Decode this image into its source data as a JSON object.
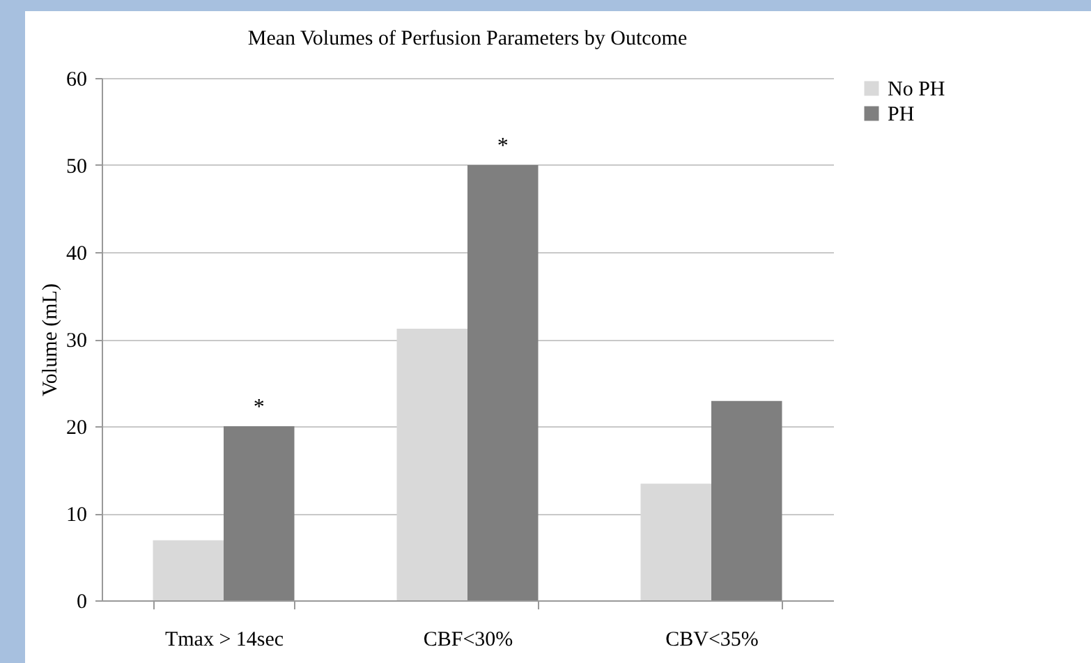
{
  "chart_data": {
    "type": "bar",
    "title": "Mean Volumes of Perfusion Parameters by Outcome",
    "ylabel": "Volume (mL)",
    "categories": [
      "Tmax > 14sec",
      "CBF<30%",
      "CBV<35%"
    ],
    "series": [
      {
        "name": "No PH",
        "color": "#d9d9d9",
        "values": [
          6.9,
          31.2,
          13.4
        ]
      },
      {
        "name": "PH",
        "color": "#7f7f7f",
        "values": [
          20,
          50,
          22.9
        ]
      }
    ],
    "ylim": [
      0,
      60
    ],
    "yticks": [
      0,
      10,
      20,
      30,
      40,
      50,
      60
    ],
    "grid": "y",
    "legend": "right",
    "annotations": [
      {
        "text": "*",
        "x": "Tmax > 14sec",
        "y": 20
      },
      {
        "text": "*",
        "x": "CBF<30%",
        "y": 50
      }
    ]
  }
}
